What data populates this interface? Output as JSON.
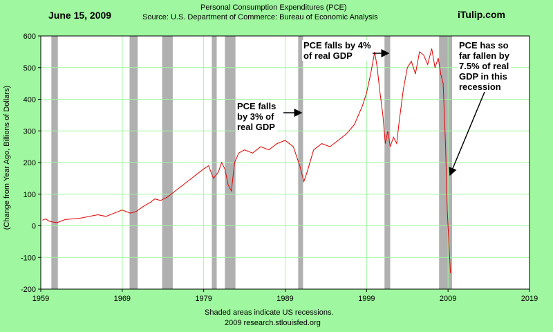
{
  "header": {
    "date": "June 15, 2009",
    "title": "Personal Consumption Expenditures (PCE)",
    "source": "Source: U.S. Department of Commerce: Bureau of Economic Analysis",
    "brand": "iTulip.com"
  },
  "footer": {
    "note": "Shaded areas indicate US recessions.",
    "credit": "2009 research.stlouisfed.org"
  },
  "annotations": [
    {
      "id": "ann1",
      "text": "PCE falls\nby 3% of\nreal GDP"
    },
    {
      "id": "ann2",
      "text": "PCE falls by 4%\nof real GDP"
    },
    {
      "id": "ann3",
      "text": "PCE has so\nfar fallen by\n7.5% of real\nGDP in this\nrecession"
    }
  ],
  "colors": {
    "background": "#9ff79f",
    "plot_area": "#ffffff",
    "line": "#e00000",
    "recession": "#b0b0b0",
    "grid": "#9ff79f"
  },
  "chart_data": {
    "type": "line",
    "title": "Personal Consumption Expenditures (PCE)",
    "xlabel": "",
    "ylabel": "(Change from Year Ago, Billions of Dollars)",
    "xlim": [
      1959,
      2019
    ],
    "ylim": [
      -200,
      600
    ],
    "xticks": [
      "1959",
      "1969",
      "1979",
      "1989",
      "1999",
      "2009",
      "2019"
    ],
    "yticks": [
      "-200",
      "-100",
      "0",
      "100",
      "200",
      "300",
      "400",
      "500",
      "600"
    ],
    "grid": true,
    "recessions": [
      [
        1960.3,
        1961.1
      ],
      [
        1969.9,
        1970.9
      ],
      [
        1973.9,
        1975.2
      ],
      [
        1980.0,
        1980.6
      ],
      [
        1981.6,
        1982.9
      ],
      [
        1990.6,
        1991.2
      ],
      [
        2001.2,
        2001.9
      ],
      [
        2007.9,
        2009.5
      ]
    ],
    "series": [
      {
        "x": [
          1959.2,
          1959.6,
          1960.0,
          1960.5,
          1961.0,
          1961.5,
          1962.0,
          1963.0,
          1964.0,
          1965.0,
          1966.0,
          1967.0,
          1968.0,
          1969.0,
          1970.0,
          1970.7,
          1971.5,
          1972.5,
          1973.0,
          1973.7,
          1974.5,
          1975.0,
          1976.0,
          1977.0,
          1978.0,
          1979.0,
          1979.6,
          1980.2,
          1980.8,
          1981.2,
          1981.6,
          1982.0,
          1982.4,
          1982.8,
          1983.3,
          1984.0,
          1985.0,
          1986.0,
          1987.0,
          1988.0,
          1989.0,
          1990.0,
          1990.8,
          1991.3,
          1991.7,
          1992.5,
          1993.5,
          1994.5,
          1995.5,
          1996.5,
          1997.5,
          1998.5,
          1999.0,
          1999.5,
          2000.0,
          2000.3,
          2000.6,
          2001.0,
          2001.3,
          2001.6,
          2001.9,
          2002.3,
          2002.7,
          2003.0,
          2003.5,
          2004.0,
          2004.5,
          2005.0,
          2005.5,
          2006.0,
          2006.5,
          2007.0,
          2007.4,
          2007.8,
          2008.1,
          2008.4,
          2008.7,
          2008.9,
          2009.1,
          2009.3
        ],
        "y": [
          18,
          22,
          15,
          12,
          10,
          15,
          20,
          22,
          25,
          30,
          35,
          30,
          40,
          50,
          40,
          45,
          60,
          75,
          85,
          80,
          90,
          100,
          120,
          140,
          160,
          180,
          190,
          150,
          170,
          200,
          180,
          130,
          110,
          200,
          230,
          240,
          230,
          250,
          240,
          260,
          270,
          250,
          190,
          140,
          170,
          240,
          260,
          250,
          270,
          290,
          320,
          380,
          420,
          480,
          550,
          500,
          430,
          350,
          260,
          300,
          250,
          280,
          260,
          330,
          430,
          500,
          520,
          480,
          550,
          540,
          510,
          560,
          500,
          530,
          480,
          450,
          250,
          50,
          -50,
          -150
        ]
      }
    ]
  }
}
